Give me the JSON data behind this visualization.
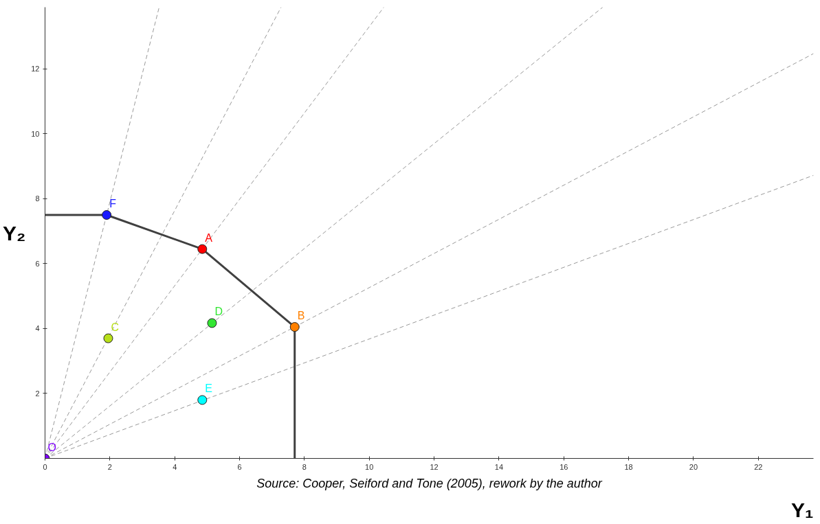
{
  "chart_data": {
    "type": "scatter",
    "xlabel": "Y₁",
    "ylabel": "Y₂",
    "annotations": [
      "Source: Cooper, Seiford and Tone (2005), rework by the author"
    ],
    "xlim": [
      0,
      23.7
    ],
    "ylim": [
      0,
      13.9
    ],
    "xticks": [
      0,
      2,
      4,
      6,
      8,
      10,
      12,
      14,
      16,
      18,
      20,
      22
    ],
    "yticks": [
      2,
      4,
      6,
      8,
      10,
      12
    ],
    "grid": false,
    "marker": "circle",
    "series": [
      {
        "type": "line",
        "line_style": "dashed",
        "marker": "none",
        "color": "#999999",
        "x": [
          0,
          3.52
        ],
        "values": [
          0,
          13.9
        ]
      },
      {
        "type": "line",
        "line_style": "dashed",
        "marker": "none",
        "color": "#999999",
        "x": [
          0,
          7.28
        ],
        "values": [
          0,
          13.9
        ]
      },
      {
        "type": "line",
        "line_style": "dashed",
        "marker": "none",
        "color": "#999999",
        "x": [
          0,
          10.45
        ],
        "values": [
          0,
          13.9
        ]
      },
      {
        "type": "line",
        "line_style": "dashed",
        "marker": "none",
        "color": "#999999",
        "x": [
          0,
          17.2
        ],
        "values": [
          0,
          13.9
        ]
      },
      {
        "type": "line",
        "line_style": "dashed",
        "marker": "none",
        "color": "#999999",
        "x": [
          0,
          23.7
        ],
        "values": [
          0,
          12.47
        ]
      },
      {
        "type": "line",
        "line_style": "dashed",
        "marker": "none",
        "color": "#999999",
        "x": [
          0,
          23.7
        ],
        "values": [
          0,
          8.72
        ]
      },
      {
        "type": "line",
        "line_style": "solid",
        "marker": "none",
        "color": "#404040",
        "x": [
          0,
          1.9,
          4.85,
          7.7,
          7.7
        ],
        "values": [
          7.5,
          7.5,
          6.45,
          4.05,
          0
        ]
      },
      {
        "name": "F",
        "color": "#1a1aff",
        "x": [
          1.9
        ],
        "values": [
          7.5
        ]
      },
      {
        "name": "A",
        "color": "#ff0000",
        "x": [
          4.85
        ],
        "values": [
          6.45
        ]
      },
      {
        "name": "B",
        "color": "#ff8000",
        "x": [
          7.7
        ],
        "values": [
          4.05
        ]
      },
      {
        "name": "C",
        "color": "#b8e01a",
        "x": [
          1.95
        ],
        "values": [
          3.7
        ]
      },
      {
        "name": "D",
        "color": "#33e633",
        "x": [
          5.15
        ],
        "values": [
          4.17
        ]
      },
      {
        "name": "E",
        "color": "#00ffff",
        "x": [
          4.85
        ],
        "values": [
          1.8
        ]
      },
      {
        "name": "O",
        "color": "#8000ff",
        "x": [
          0
        ],
        "values": [
          0
        ]
      }
    ]
  }
}
